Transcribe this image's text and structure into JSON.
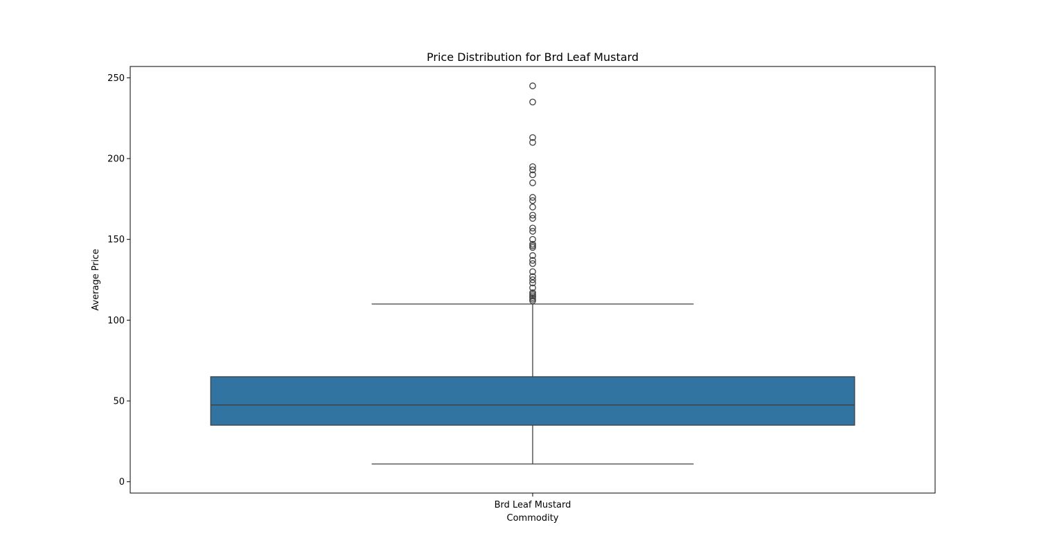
{
  "chart_data": {
    "type": "box",
    "title": "Price Distribution for Brd Leaf Mustard",
    "xlabel": "Commodity",
    "ylabel": "Average Price",
    "categories": [
      "Brd Leaf Mustard"
    ],
    "ylim": [
      -7,
      257
    ],
    "yticks": [
      0,
      50,
      100,
      150,
      200,
      250
    ],
    "grid": false,
    "box": {
      "category": "Brd Leaf Mustard",
      "whisker_low": 11,
      "q1": 35,
      "median": 47.5,
      "q3": 65,
      "whisker_high": 110,
      "outliers": [
        112,
        113,
        114,
        115,
        116,
        117,
        120,
        123,
        125,
        127,
        130,
        135,
        137,
        140,
        145,
        146,
        147,
        150,
        155,
        157,
        163,
        165,
        170,
        174,
        176,
        185,
        190,
        193,
        195,
        210,
        213,
        235,
        245
      ],
      "color": "#3274a1"
    }
  }
}
